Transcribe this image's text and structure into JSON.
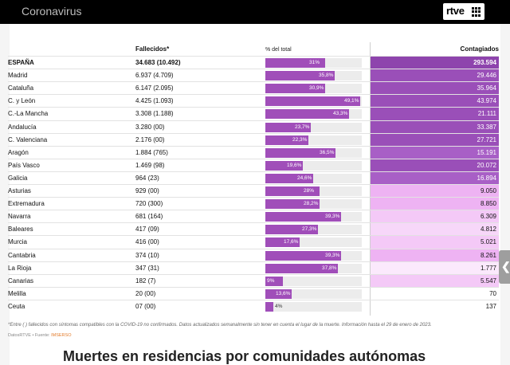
{
  "header": {
    "site_title": "Coronavirus",
    "logo_text": "rtve"
  },
  "table": {
    "col_fallecidos": "Fallecidos*",
    "col_pct": "% del total",
    "col_contagiados": "Contagiados",
    "rows": [
      {
        "name": "ESPAÑA",
        "fallecidos": "34.683 (10.492)",
        "pct": "31%",
        "pct_value": 31,
        "contagiados": "293.594",
        "bold": true,
        "cont_color": "#8e44ad",
        "cont_text_color": "#ffffff"
      },
      {
        "name": "Madrid",
        "fallecidos": "6.937 (4.709)",
        "pct": "35,8%",
        "pct_value": 35.8,
        "contagiados": "29.446",
        "cont_color": "#9a4fb8",
        "cont_text_color": "#ffffff"
      },
      {
        "name": "Cataluña",
        "fallecidos": "6.147 (2.095)",
        "pct": "30,9%",
        "pct_value": 30.9,
        "contagiados": "35.964",
        "cont_color": "#9a4fb8",
        "cont_text_color": "#ffffff"
      },
      {
        "name": "C. y León",
        "fallecidos": "4.425 (1.093)",
        "pct": "49,1%",
        "pct_value": 49.1,
        "contagiados": "43.974",
        "cont_color": "#9a4fb8",
        "cont_text_color": "#ffffff"
      },
      {
        "name": "C.-La Mancha",
        "fallecidos": "3.308 (1.188)",
        "pct": "43,3%",
        "pct_value": 43.3,
        "contagiados": "21.111",
        "cont_color": "#9a4fb8",
        "cont_text_color": "#ffffff"
      },
      {
        "name": "Andalucía",
        "fallecidos": "3.280 (00)",
        "pct": "23,7%",
        "pct_value": 23.7,
        "contagiados": "33.387",
        "cont_color": "#9a4fb8",
        "cont_text_color": "#ffffff"
      },
      {
        "name": "C. Valenciana",
        "fallecidos": "2.176 (00)",
        "pct": "22,3%",
        "pct_value": 22.3,
        "contagiados": "27.721",
        "cont_color": "#9a4fb8",
        "cont_text_color": "#ffffff"
      },
      {
        "name": "Aragón",
        "fallecidos": "1.884 (765)",
        "pct": "36,5%",
        "pct_value": 36.5,
        "contagiados": "15.191",
        "cont_color": "#a85fc6",
        "cont_text_color": "#ffffff"
      },
      {
        "name": "País Vasco",
        "fallecidos": "1.469 (98)",
        "pct": "19,6%",
        "pct_value": 19.6,
        "contagiados": "20.072",
        "cont_color": "#9a4fb8",
        "cont_text_color": "#ffffff"
      },
      {
        "name": "Galicia",
        "fallecidos": "964 (23)",
        "pct": "24,6%",
        "pct_value": 24.6,
        "contagiados": "16.894",
        "cont_color": "#a85fc6",
        "cont_text_color": "#ffffff"
      },
      {
        "name": "Asturias",
        "fallecidos": "929 (00)",
        "pct": "28%",
        "pct_value": 28,
        "contagiados": "9.050",
        "cont_color": "#eeb3f3",
        "cont_text_color": "#111111"
      },
      {
        "name": "Extremadura",
        "fallecidos": "720 (300)",
        "pct": "28,2%",
        "pct_value": 28.2,
        "contagiados": "8.850",
        "cont_color": "#eeb3f3",
        "cont_text_color": "#111111"
      },
      {
        "name": "Navarra",
        "fallecidos": "681 (164)",
        "pct": "39,3%",
        "pct_value": 39.3,
        "contagiados": "6.309",
        "cont_color": "#f4c9f7",
        "cont_text_color": "#111111"
      },
      {
        "name": "Baleares",
        "fallecidos": "417 (09)",
        "pct": "27,3%",
        "pct_value": 27.3,
        "contagiados": "4.812",
        "cont_color": "#f7d7f9",
        "cont_text_color": "#111111"
      },
      {
        "name": "Murcia",
        "fallecidos": "416 (00)",
        "pct": "17,6%",
        "pct_value": 17.6,
        "contagiados": "5.021",
        "cont_color": "#f4c9f7",
        "cont_text_color": "#111111"
      },
      {
        "name": "Cantabria",
        "fallecidos": "374 (10)",
        "pct": "39,3%",
        "pct_value": 39.3,
        "contagiados": "8.261",
        "cont_color": "#eeb3f3",
        "cont_text_color": "#111111"
      },
      {
        "name": "La Rioja",
        "fallecidos": "347 (31)",
        "pct": "37,8%",
        "pct_value": 37.8,
        "contagiados": "1.777",
        "cont_color": "#fbe9fc",
        "cont_text_color": "#111111"
      },
      {
        "name": "Canarias",
        "fallecidos": "182 (7)",
        "pct": "9%",
        "pct_value": 9,
        "contagiados": "5.547",
        "cont_color": "#f4c9f7",
        "cont_text_color": "#111111"
      },
      {
        "name": "Melilla",
        "fallecidos": "20 (00)",
        "pct": "13,6%",
        "pct_value": 13.6,
        "contagiados": "70",
        "cont_color": "#ffffff",
        "cont_text_color": "#111111"
      },
      {
        "name": "Ceuta",
        "fallecidos": "07 (00)",
        "pct": "4%",
        "pct_value": 4,
        "contagiados": "137",
        "cont_color": "#ffffff",
        "cont_text_color": "#111111"
      }
    ]
  },
  "footnote": "*Entre ( ) fallecidos con síntomas compatibles con la COVID-19 no confirmados. Datos actualizados semanalmente sin tener en cuenta el lugar de la muerte. Información hasta el 29 de enero de 2023.",
  "source_prefix": "DatosRTVE • Fuente: ",
  "source_name": "IMSERSO",
  "section_heading": "Muertes en residencias por comunidades autónomas",
  "side_tab_arrow": "❮"
}
